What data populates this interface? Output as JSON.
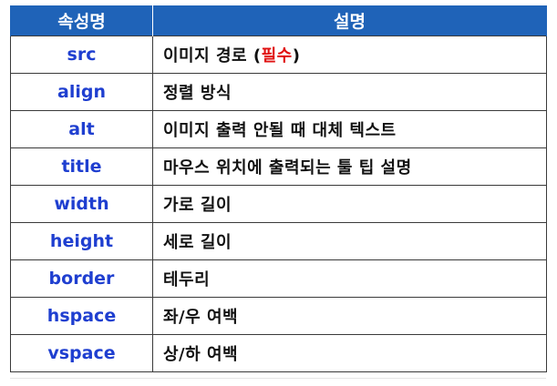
{
  "table": {
    "headers": {
      "name": "속성명",
      "description": "설명"
    },
    "rows": [
      {
        "name": "src",
        "description": "이미지 경로 (",
        "emphasis": "필수",
        "suffix": ")"
      },
      {
        "name": "align",
        "description": "정렬 방식",
        "emphasis": "",
        "suffix": ""
      },
      {
        "name": "alt",
        "description": "이미지 출력 안될 때 대체 텍스트",
        "emphasis": "",
        "suffix": ""
      },
      {
        "name": "title",
        "description": "마우스 위치에 출력되는 툴 팁 설명",
        "emphasis": "",
        "suffix": ""
      },
      {
        "name": "width",
        "description": "가로 길이",
        "emphasis": "",
        "suffix": ""
      },
      {
        "name": "height",
        "description": "세로 길이",
        "emphasis": "",
        "suffix": ""
      },
      {
        "name": "border",
        "description": "테두리",
        "emphasis": "",
        "suffix": ""
      },
      {
        "name": "hspace",
        "description": "좌/우 여백",
        "emphasis": "",
        "suffix": ""
      },
      {
        "name": "vspace",
        "description": "상/하 여백",
        "emphasis": "",
        "suffix": ""
      }
    ]
  },
  "colors": {
    "header_background": "#1f63b8",
    "header_text": "#ffffff",
    "attribute_name_text": "#1f3fd0",
    "description_text": "#111111",
    "required_text": "#e01010",
    "border": "#3a3a3a"
  }
}
